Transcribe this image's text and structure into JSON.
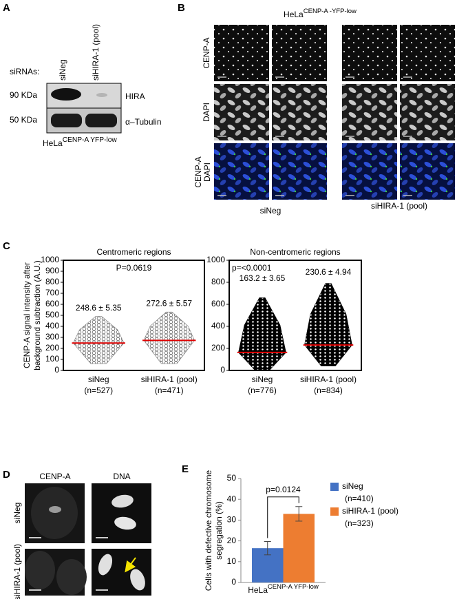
{
  "figure": {
    "panel_labels": [
      "A",
      "B",
      "C",
      "D",
      "E"
    ]
  },
  "panel_a": {
    "row_label": "siRNAs:",
    "lanes": [
      "siNeg",
      "siHIRA-1 (pool)"
    ],
    "markers": [
      "90 KDa",
      "50 KDa"
    ],
    "proteins": [
      "HIRA",
      "α–Tubulin"
    ],
    "cell_line": "HeLa",
    "cell_line_sup": "CENP-A YFP-low"
  },
  "panel_b": {
    "title": "HeLa",
    "title_sup": "CENP-A -YFP-low",
    "row_labels": [
      "CENP-A",
      "DAPI"
    ],
    "merge_labels": [
      "CENP-A",
      "DAPI"
    ],
    "merge_colors": [
      "#2ca02c",
      "#1f3fd8"
    ],
    "column_labels": [
      "siNeg",
      "siHIRA-1 (pool)"
    ]
  },
  "panel_d": {
    "column_labels": [
      "CENP-A",
      "DNA"
    ],
    "row_labels": [
      "siNeg",
      "siHIRA-1 (pool)"
    ]
  },
  "chart_data": [
    {
      "type": "dotplot",
      "title": "Centromeric regions",
      "ylabel": [
        "CENP-A signal intensity after",
        "background subtraction (A.U.)"
      ],
      "annotation": "P=0.0619",
      "categories": [
        "siNeg",
        "siHIRA-1 (pool)"
      ],
      "counts": [
        "(n=527)",
        "(n=471)"
      ],
      "values": [
        248.6,
        272.6
      ],
      "value_labels": [
        "248.6 ± 5.35",
        "272.6 ± 5.57"
      ],
      "spread": [
        [
          60,
          490
        ],
        [
          60,
          530
        ]
      ],
      "point_color": "#777777",
      "mean_color": "#e00000",
      "ylim": [
        0,
        1000
      ],
      "yticks": [
        0,
        100,
        200,
        300,
        400,
        500,
        600,
        700,
        800,
        900,
        1000
      ]
    },
    {
      "type": "dotplot",
      "title": "Non-centromeric regions",
      "annotation": "p=<0.0001",
      "categories": [
        "siNeg",
        "siHIRA-1 (pool)"
      ],
      "counts": [
        "(n=776)",
        "(n=834)"
      ],
      "values": [
        163.2,
        230.6
      ],
      "value_labels": [
        "163.2 ± 3.65",
        "230.6 ± 4.94"
      ],
      "spread": [
        [
          0,
          660
        ],
        [
          40,
          790
        ]
      ],
      "point_color": "#000000",
      "mean_color": "#e00000",
      "ylim": [
        0,
        1000
      ],
      "yticks": [
        0,
        200,
        400,
        600,
        800,
        1000
      ]
    },
    {
      "type": "bar",
      "ylabel": [
        "Cells with defective chromosome",
        "segregation (%)"
      ],
      "annotation": "p=0.0124",
      "xlabel": "HeLa",
      "xlabel_sup": "CENP-A YFP-low",
      "series": [
        {
          "name": "siNeg",
          "n_label": "(n=410)",
          "color": "#4472c4",
          "values": [
            16.5
          ],
          "errors": [
            3.2
          ]
        },
        {
          "name": "siHIRA-1 (pool)",
          "n_label": "(n=323)",
          "color": "#ed7d31",
          "values": [
            33
          ],
          "errors": [
            3.5
          ]
        }
      ],
      "ylim": [
        0,
        50
      ],
      "yticks": [
        0,
        10,
        20,
        30,
        40,
        50
      ]
    }
  ]
}
